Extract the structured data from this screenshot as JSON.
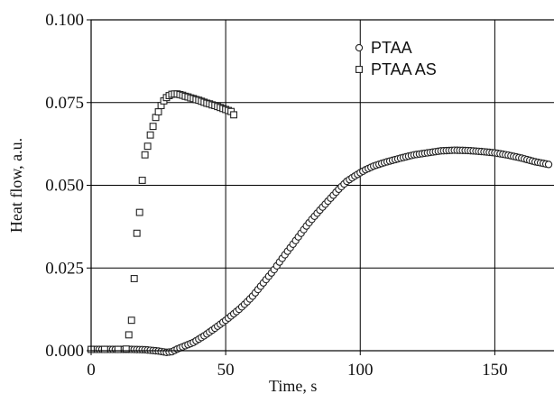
{
  "chart_data": {
    "type": "scatter",
    "xlabel": "Time, s",
    "ylabel": "Heat flow, a.u.",
    "xlim": [
      0,
      172
    ],
    "ylim": [
      0,
      0.1
    ],
    "x_ticks": [
      "0",
      "50",
      "100",
      "150"
    ],
    "y_ticks": [
      "0.000",
      "0.025",
      "0.050",
      "0.075",
      "0.100"
    ],
    "grid": true,
    "legend_position": "top-right",
    "series": [
      {
        "name": "PTAA",
        "marker": "circle",
        "x": [
          0,
          5,
          10,
          15,
          20,
          25,
          28,
          30,
          32,
          35,
          38,
          40,
          42,
          45,
          48,
          50,
          52,
          55,
          58,
          60,
          62,
          65,
          68,
          70,
          72,
          75,
          78,
          80,
          82,
          85,
          88,
          90,
          92,
          95,
          98,
          100,
          102,
          105,
          108,
          110,
          115,
          120,
          125,
          130,
          135,
          140,
          145,
          150,
          155,
          160,
          165,
          170
        ],
        "y": [
          0.0004,
          0.0004,
          0.0004,
          0.0004,
          0.0003,
          -0.0001,
          -0.0005,
          -0.0003,
          0.0005,
          0.0015,
          0.0025,
          0.0035,
          0.0045,
          0.0062,
          0.008,
          0.0092,
          0.0105,
          0.0125,
          0.0148,
          0.0165,
          0.0185,
          0.0215,
          0.0245,
          0.0268,
          0.029,
          0.0322,
          0.0355,
          0.0377,
          0.0397,
          0.0425,
          0.0452,
          0.047,
          0.0488,
          0.0512,
          0.0528,
          0.0538,
          0.0547,
          0.0558,
          0.0566,
          0.0571,
          0.0582,
          0.0592,
          0.0598,
          0.0604,
          0.0606,
          0.0605,
          0.0602,
          0.0598,
          0.0591,
          0.0582,
          0.0571,
          0.0563
        ]
      },
      {
        "name": "PTAA AS",
        "marker": "square",
        "x": [
          0,
          5,
          10,
          13,
          14,
          15,
          16,
          17,
          18,
          19,
          20,
          21,
          22,
          23,
          24,
          25,
          26,
          27,
          28,
          29,
          30,
          31,
          32,
          33,
          34,
          35,
          36,
          37,
          38,
          39,
          40,
          41,
          42,
          43,
          44,
          45,
          46,
          47,
          48,
          49,
          50,
          51,
          52,
          53
        ],
        "y": [
          0.0004,
          0.0004,
          0.0004,
          0.0005,
          0.0048,
          0.0092,
          0.0218,
          0.0355,
          0.0418,
          0.0515,
          0.0592,
          0.0618,
          0.0652,
          0.0678,
          0.0705,
          0.0722,
          0.0741,
          0.0755,
          0.0765,
          0.0771,
          0.0775,
          0.0776,
          0.0776,
          0.0774,
          0.0772,
          0.0769,
          0.0767,
          0.0764,
          0.0762,
          0.0759,
          0.0757,
          0.0754,
          0.0751,
          0.0748,
          0.0746,
          0.0743,
          0.0741,
          0.0738,
          0.0735,
          0.0732,
          0.0729,
          0.0726,
          0.0723,
          0.0713
        ]
      }
    ]
  }
}
